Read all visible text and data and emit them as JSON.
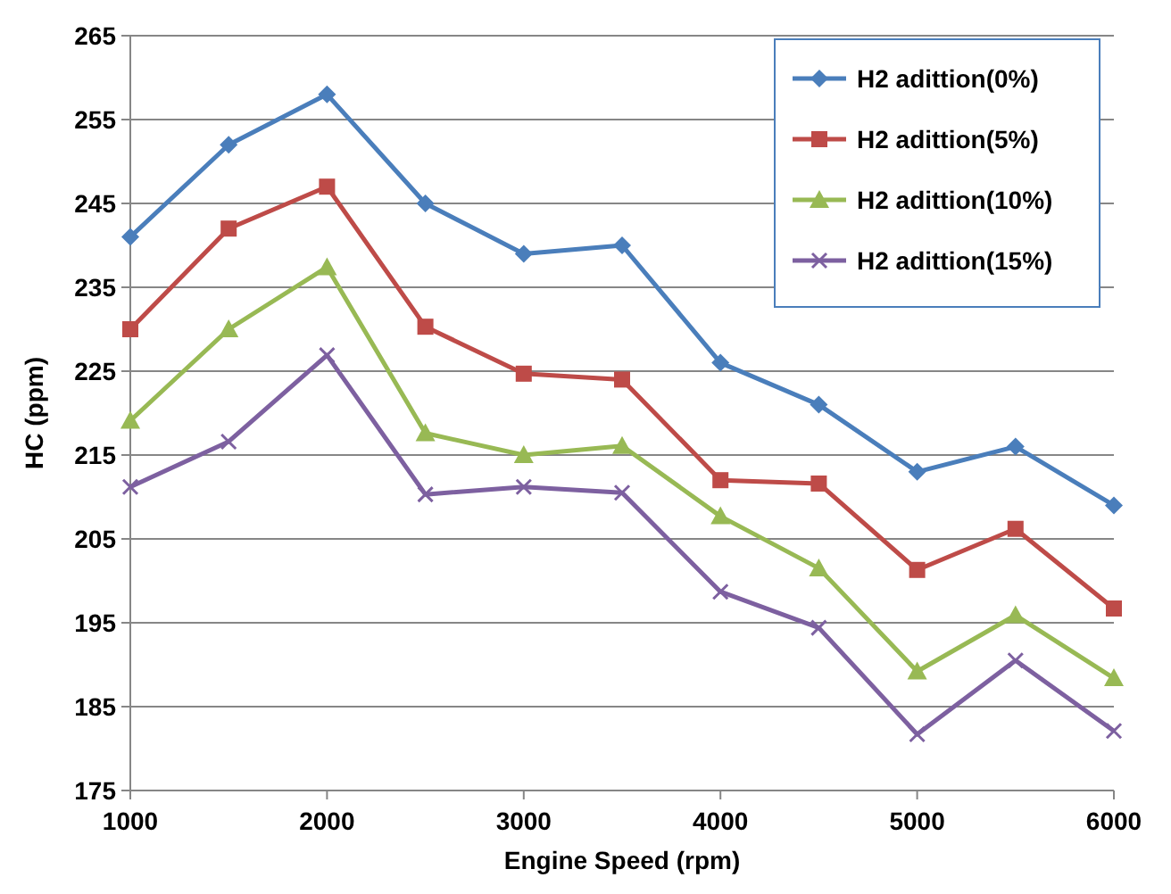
{
  "chart_data": {
    "type": "line",
    "xlabel": "Engine Speed (rpm)",
    "ylabel": "HC (ppm)",
    "x": [
      1000,
      1500,
      2000,
      2500,
      3000,
      3500,
      4000,
      4500,
      5000,
      5500,
      6000
    ],
    "xlim": [
      1000,
      6000
    ],
    "xticks": [
      1000,
      2000,
      3000,
      4000,
      5000,
      6000
    ],
    "ylim": [
      175,
      265
    ],
    "yticks": [
      175,
      185,
      195,
      205,
      215,
      225,
      235,
      245,
      255,
      265
    ],
    "grid": "y",
    "legend": "top right",
    "series": [
      {
        "name": "H2 adittion(0%)",
        "color": "#4a7ebb",
        "marker": "diamond",
        "values": [
          241,
          252,
          258,
          245,
          239,
          240,
          226,
          221,
          213,
          216,
          209
        ]
      },
      {
        "name": "H2 adittion(5%)",
        "color": "#be4b48",
        "marker": "square",
        "values": [
          230,
          242,
          247,
          230.3,
          224.7,
          224,
          212,
          211.6,
          201.3,
          206.2,
          196.7
        ]
      },
      {
        "name": "H2 adittion(10%)",
        "color": "#98b954",
        "marker": "triangle",
        "values": [
          219.1,
          230,
          237.4,
          217.6,
          215,
          216.1,
          207.7,
          201.5,
          189.2,
          195.9,
          188.4
        ]
      },
      {
        "name": "H2 adittion(15%)",
        "color": "#7d60a0",
        "marker": "cross",
        "values": [
          211.2,
          216.6,
          226.9,
          210.3,
          211.2,
          210.5,
          198.7,
          194.4,
          181.7,
          190.5,
          182.1
        ]
      }
    ]
  }
}
